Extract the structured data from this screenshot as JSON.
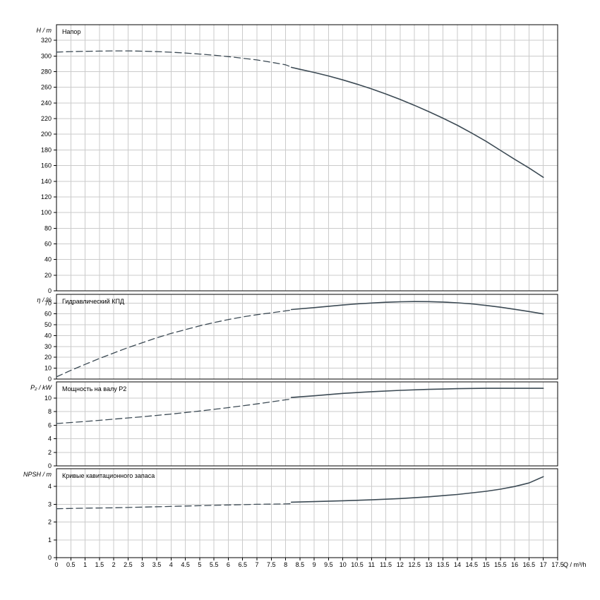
{
  "colors": {
    "curve": "#3c4a54",
    "grid": "#cbcbcb",
    "frame": "#000000",
    "background": "#ffffff"
  },
  "axis_x": {
    "label": "Q / m³/h",
    "min": 0,
    "max": 17.5,
    "ticks": [
      0,
      0.5,
      1,
      1.5,
      2,
      2.5,
      3,
      3.5,
      4,
      4.5,
      5,
      5.5,
      6,
      6.5,
      7,
      7.5,
      8,
      8.5,
      9,
      9.5,
      10,
      10.5,
      11,
      11.5,
      12,
      12.5,
      13,
      13.5,
      14,
      14.5,
      15,
      15.5,
      16,
      16.5,
      17,
      17.5
    ]
  },
  "chart_data": [
    {
      "type": "line",
      "title": "Напор",
      "ylabel": "H / m",
      "xlabel": "Q / m³/h",
      "ylim": [
        0,
        340
      ],
      "yticks": [
        0,
        20,
        40,
        60,
        80,
        100,
        120,
        140,
        160,
        180,
        200,
        220,
        240,
        260,
        280,
        300,
        320
      ],
      "grid": true,
      "series": [
        {
          "name": "head-curve-dashed",
          "style": "dashed",
          "points": [
            [
              0,
              305
            ],
            [
              0.5,
              305.6
            ],
            [
              1,
              306
            ],
            [
              1.5,
              306.3
            ],
            [
              2,
              306.5
            ],
            [
              2.5,
              306.5
            ],
            [
              3,
              306.2
            ],
            [
              3.5,
              305.6
            ],
            [
              4,
              304.8
            ],
            [
              4.5,
              303.8
            ],
            [
              5,
              302.5
            ],
            [
              5.5,
              301
            ],
            [
              6,
              299.2
            ],
            [
              6.5,
              297.2
            ],
            [
              7,
              295
            ],
            [
              7.5,
              292
            ],
            [
              8,
              288.8
            ],
            [
              8.2,
              286
            ]
          ]
        },
        {
          "name": "head-curve-solid",
          "style": "solid",
          "points": [
            [
              8.2,
              285.5
            ],
            [
              8.5,
              283
            ],
            [
              9,
              279
            ],
            [
              9.5,
              274.5
            ],
            [
              10,
              269.5
            ],
            [
              10.5,
              264
            ],
            [
              11,
              258
            ],
            [
              11.5,
              251.5
            ],
            [
              12,
              244.5
            ],
            [
              12.5,
              237
            ],
            [
              13,
              229
            ],
            [
              13.5,
              220.5
            ],
            [
              14,
              211.5
            ],
            [
              14.5,
              201.5
            ],
            [
              15,
              191
            ],
            [
              15.5,
              179.5
            ],
            [
              16,
              168
            ],
            [
              16.5,
              157
            ],
            [
              17,
              145
            ]
          ]
        }
      ]
    },
    {
      "type": "line",
      "title": "Гидравлический КПД",
      "ylabel": "η / %",
      "ylim": [
        0,
        78
      ],
      "yticks": [
        0,
        10,
        20,
        30,
        40,
        50,
        60,
        70
      ],
      "grid": true,
      "series": [
        {
          "name": "efficiency-curve-dashed",
          "style": "dashed",
          "points": [
            [
              0,
              2
            ],
            [
              0.5,
              8
            ],
            [
              1,
              13.5
            ],
            [
              1.5,
              19
            ],
            [
              2,
              24
            ],
            [
              2.5,
              29
            ],
            [
              3,
              33.5
            ],
            [
              3.5,
              38
            ],
            [
              4,
              42
            ],
            [
              4.5,
              45.5
            ],
            [
              5,
              49
            ],
            [
              5.5,
              52
            ],
            [
              6,
              54.8
            ],
            [
              6.5,
              57.2
            ],
            [
              7,
              59.3
            ],
            [
              7.5,
              61
            ],
            [
              8,
              62.8
            ],
            [
              8.2,
              63.5
            ]
          ]
        },
        {
          "name": "efficiency-curve-solid",
          "style": "solid",
          "points": [
            [
              8.2,
              64
            ],
            [
              9,
              65.8
            ],
            [
              9.5,
              67
            ],
            [
              10,
              68.2
            ],
            [
              10.5,
              69.2
            ],
            [
              11,
              70
            ],
            [
              11.5,
              70.7
            ],
            [
              12,
              71.2
            ],
            [
              12.5,
              71.4
            ],
            [
              13,
              71.3
            ],
            [
              13.5,
              70.9
            ],
            [
              14,
              70.2
            ],
            [
              14.5,
              69.2
            ],
            [
              15,
              67.8
            ],
            [
              15.5,
              66.2
            ],
            [
              16,
              64.2
            ],
            [
              16.5,
              62.2
            ],
            [
              17,
              60
            ]
          ]
        }
      ]
    },
    {
      "type": "line",
      "title": "Мощность на валу P2",
      "ylabel": "P₂ / kW",
      "ylim": [
        0,
        12.4
      ],
      "yticks": [
        0,
        2,
        4,
        6,
        8,
        10
      ],
      "grid": true,
      "series": [
        {
          "name": "power-curve-dashed",
          "style": "dashed",
          "points": [
            [
              0,
              6.25
            ],
            [
              1,
              6.55
            ],
            [
              2,
              6.9
            ],
            [
              3,
              7.25
            ],
            [
              4,
              7.65
            ],
            [
              5,
              8.1
            ],
            [
              6,
              8.6
            ],
            [
              7,
              9.15
            ],
            [
              8,
              9.75
            ],
            [
              8.2,
              9.85
            ]
          ]
        },
        {
          "name": "power-curve-solid",
          "style": "solid",
          "points": [
            [
              8.2,
              10.1
            ],
            [
              9,
              10.35
            ],
            [
              10,
              10.7
            ],
            [
              11,
              10.95
            ],
            [
              12,
              11.15
            ],
            [
              13,
              11.3
            ],
            [
              14,
              11.4
            ],
            [
              15,
              11.45
            ],
            [
              16,
              11.45
            ],
            [
              17,
              11.45
            ]
          ]
        }
      ]
    },
    {
      "type": "line",
      "title": "Кривые кавитационного запаса",
      "ylabel": "NPSH / m",
      "ylim": [
        0,
        5
      ],
      "yticks": [
        0,
        1,
        2,
        3,
        4
      ],
      "grid": true,
      "series": [
        {
          "name": "npsh-curve-dashed",
          "style": "dashed",
          "points": [
            [
              0,
              2.75
            ],
            [
              1,
              2.78
            ],
            [
              2,
              2.8
            ],
            [
              3,
              2.84
            ],
            [
              4,
              2.88
            ],
            [
              5,
              2.92
            ],
            [
              6,
              2.96
            ],
            [
              7,
              3.0
            ],
            [
              8,
              3.02
            ],
            [
              8.2,
              3.03
            ]
          ]
        },
        {
          "name": "npsh-curve-solid",
          "style": "solid",
          "points": [
            [
              8.2,
              3.12
            ],
            [
              9,
              3.15
            ],
            [
              10,
              3.2
            ],
            [
              11,
              3.25
            ],
            [
              12,
              3.32
            ],
            [
              13,
              3.42
            ],
            [
              14,
              3.55
            ],
            [
              15,
              3.73
            ],
            [
              15.5,
              3.85
            ],
            [
              16,
              4.0
            ],
            [
              16.5,
              4.2
            ],
            [
              17,
              4.55
            ]
          ]
        }
      ]
    }
  ]
}
